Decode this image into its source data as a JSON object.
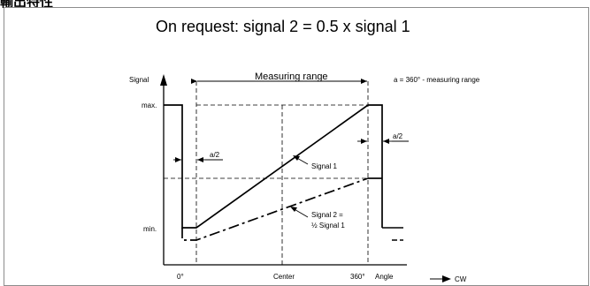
{
  "page": {
    "header": "輸出特性",
    "heading": "On request: signal 2 = 0.5 x signal 1"
  },
  "diagram": {
    "y_axis_label": "Signal",
    "x_axis_label": "Angle",
    "direction_label": "CW",
    "y_max_label": "max.",
    "y_min_label": "min.",
    "x_start_label": "0°",
    "x_center_label": "Center",
    "x_end_label": "360°",
    "measuring_range_label": "Measuring range",
    "a_definition": "a = 360° -  measuring range",
    "a_half_left": "a/2",
    "a_half_right": "a/2",
    "signal1_label": "Signal 1",
    "signal2_label_line1": "Signal 2 =",
    "signal2_label_line2": "½ Signal 1"
  }
}
